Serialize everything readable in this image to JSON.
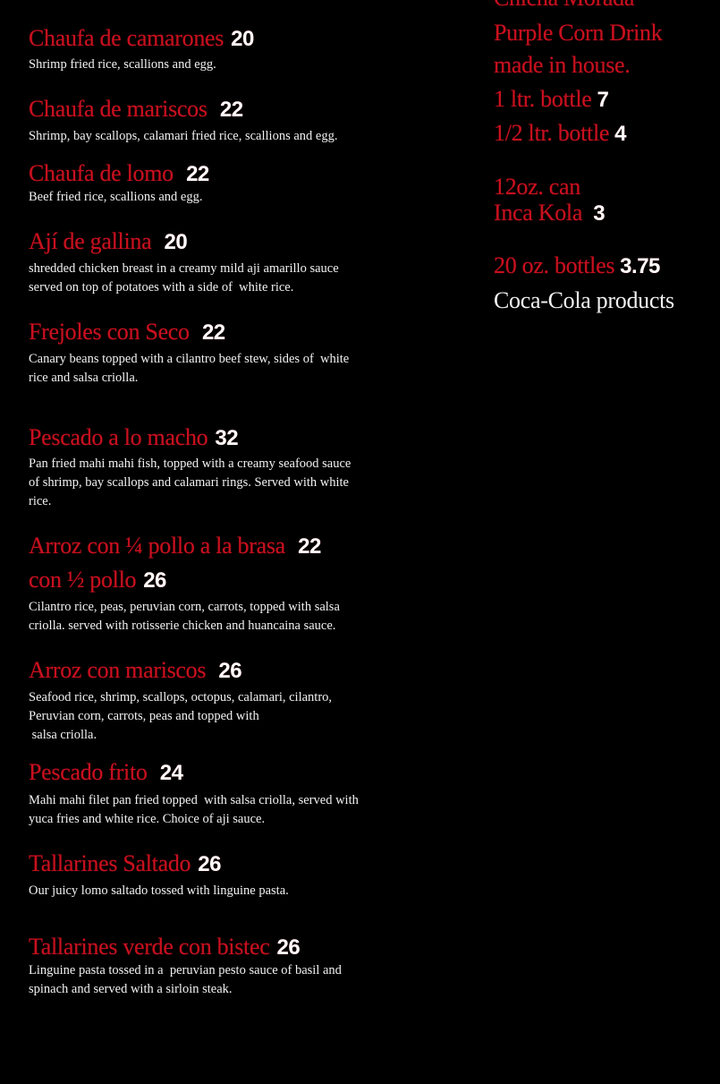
{
  "colors": {
    "name": "#c8101e",
    "price": "#ffffff",
    "background": "#000000"
  },
  "items": [
    {
      "name": "Chaufa de camarones",
      "price": "20",
      "desc": [
        "Shrimp fried rice, scallions and egg."
      ]
    },
    {
      "name": "Chaufa de mariscos ",
      "price": "22",
      "desc": [
        "Shrimp, bay scallops, calamari fried rice, scallions and egg."
      ]
    },
    {
      "name": "Chaufa de lomo ",
      "price": "22",
      "desc": [
        "Beef fried rice, scallions and egg."
      ]
    },
    {
      "name": "Ají de gallina ",
      "price": "20",
      "desc": [
        "shredded chicken breast in a creamy mild aji amarillo sauce",
        "served on top of potatoes with a side of  white rice."
      ]
    },
    {
      "name": "Frejoles con Seco ",
      "price": "22",
      "desc": [
        "Canary beans topped with a cilantro beef stew, sides of  white",
        "rice and salsa criolla."
      ]
    },
    {
      "name": "Pescado a lo macho",
      "price": "32",
      "desc": [
        "Pan fried mahi mahi fish, topped with a creamy seafood sauce",
        "of shrimp, bay scallops and calamari rings. Served with white",
        "rice."
      ]
    },
    {
      "name": "Arroz con ¼ pollo a la brasa ",
      "price": "22",
      "name2": "con ½ pollo",
      "price2": "26",
      "desc": [
        "Cilantro rice, peas, peruvian corn, carrots, topped with salsa",
        "criolla. served with rotisserie chicken and huancaina sauce."
      ]
    },
    {
      "name": "Arroz con mariscos ",
      "price": "26",
      "desc": [
        "Seafood rice, shrimp, scallops, octopus, calamari, cilantro,",
        "Peruvian corn, carrots, peas and topped with",
        " salsa criolla."
      ]
    },
    {
      "name": "Pescado frito ",
      "price": "24",
      "desc": [
        "Mahi mahi filet pan fried topped  with salsa criolla, served with",
        "yuca fries and white rice. Choice of aji sauce."
      ]
    },
    {
      "name": "Tallarines Saltado",
      "price": "26",
      "desc": [
        "Our juicy lomo saltado tossed with linguine pasta."
      ]
    },
    {
      "name": "Tallarines verde con bistec",
      "price": "26",
      "desc": [
        "Linguine pasta tossed in a  peruvian pesto sauce of basil and",
        "spinach and served with a sirloin steak."
      ]
    }
  ],
  "drinks": [
    {
      "text": "Chicha Morada",
      "price": ""
    },
    {
      "text": "Purple Corn Drink",
      "price": ""
    },
    {
      "text": "made in house.",
      "price": ""
    },
    {
      "text": "1 ltr. bottle",
      "price": "7"
    },
    {
      "text": "1/2 ltr. bottle",
      "price": "4"
    },
    {
      "text": "12oz. can",
      "price": ""
    },
    {
      "text": "Inca Kola ",
      "price": "3"
    },
    {
      "text": "20 oz. bottles",
      "price": "3.75"
    }
  ],
  "drinks_note": "Coca-Cola products"
}
